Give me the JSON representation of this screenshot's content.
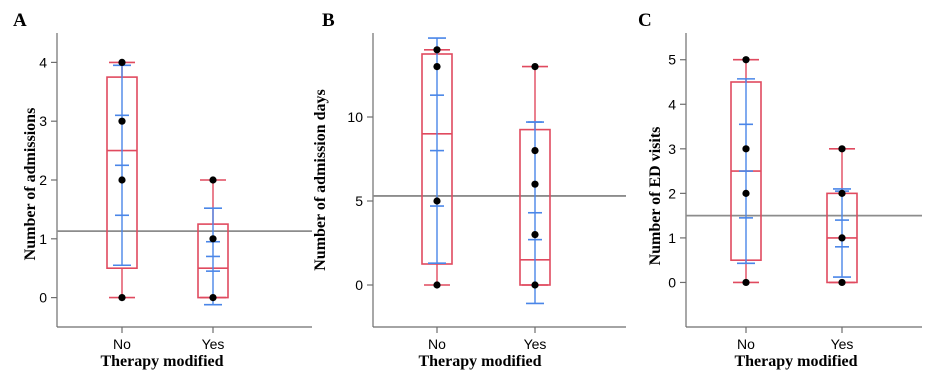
{
  "chart_data": [
    {
      "panel": "A",
      "type": "box",
      "categories": [
        "No",
        "Yes"
      ],
      "xlabel": "Therapy modified",
      "ylabel": "Number of admissions",
      "y_ticks": [
        0,
        1,
        2,
        3,
        4
      ],
      "y_tick_labels": [
        "0",
        "1",
        "2",
        "3",
        "4"
      ],
      "ylim": [
        -0.5,
        4.5
      ],
      "reference_line": 1.13,
      "boxes": [
        {
          "category": "No",
          "min": 0,
          "q1": 0.5,
          "median": 2.5,
          "q3": 3.75,
          "max": 4,
          "mean": 2.25,
          "mean_ci": [
            1.4,
            3.1
          ],
          "sd_range": [
            0.55,
            3.95
          ],
          "points": [
            0,
            2,
            3,
            4
          ]
        },
        {
          "category": "Yes",
          "min": 0,
          "q1": 0,
          "median": 0.5,
          "q3": 1.25,
          "max": 2,
          "mean": 0.7,
          "mean_ci": [
            0.45,
            0.95
          ],
          "sd_range": [
            -0.12,
            1.52
          ],
          "points": [
            0,
            1,
            2
          ]
        }
      ]
    },
    {
      "panel": "B",
      "type": "box",
      "categories": [
        "No",
        "Yes"
      ],
      "xlabel": "Therapy modified",
      "ylabel": "Number of admission days",
      "y_ticks": [
        0,
        5,
        10
      ],
      "y_tick_labels": [
        "0",
        "5",
        "10"
      ],
      "ylim": [
        -2.5,
        15
      ],
      "reference_line": 5.3,
      "boxes": [
        {
          "category": "No",
          "min": 0,
          "q1": 1.25,
          "median": 9,
          "q3": 13.75,
          "max": 14,
          "mean": 8,
          "mean_ci": [
            4.7,
            11.3
          ],
          "sd_range": [
            1.3,
            14.7
          ],
          "points": [
            0,
            5,
            13,
            14
          ]
        },
        {
          "category": "Yes",
          "min": 0,
          "q1": 0,
          "median": 1.5,
          "q3": 9.25,
          "max": 13,
          "mean": 4.3,
          "mean_ci": [
            2.7,
            9.7
          ],
          "sd_range": [
            -1.1,
            9.7
          ],
          "points": [
            0,
            3,
            6,
            8,
            13
          ]
        }
      ]
    },
    {
      "panel": "C",
      "type": "box",
      "categories": [
        "No",
        "Yes"
      ],
      "xlabel": "Therapy modified",
      "ylabel": "Number of ED visits",
      "y_ticks": [
        0,
        1,
        2,
        3,
        4,
        5
      ],
      "y_tick_labels": [
        "0",
        "1",
        "2",
        "3",
        "4",
        "5"
      ],
      "ylim": [
        -1,
        5.6
      ],
      "reference_line": 1.5,
      "boxes": [
        {
          "category": "No",
          "min": 0,
          "q1": 0.5,
          "median": 2.5,
          "q3": 4.5,
          "max": 5,
          "mean": 2.5,
          "mean_ci": [
            1.45,
            3.55
          ],
          "sd_range": [
            0.43,
            4.57
          ],
          "points": [
            0,
            2,
            3,
            5
          ]
        },
        {
          "category": "Yes",
          "min": 0,
          "q1": 0,
          "median": 1,
          "q3": 2,
          "max": 3,
          "mean": 1.4,
          "mean_ci": [
            0.8,
            2.05
          ],
          "sd_range": [
            0.12,
            2.1
          ],
          "points": [
            0,
            1,
            2,
            3
          ]
        }
      ]
    }
  ],
  "colors": {
    "box": "#e04a5f",
    "mean_ci": "#4a86e8",
    "reference_line": "#8c8c8c",
    "axis": "#6e6e6e",
    "point": "#000000"
  }
}
